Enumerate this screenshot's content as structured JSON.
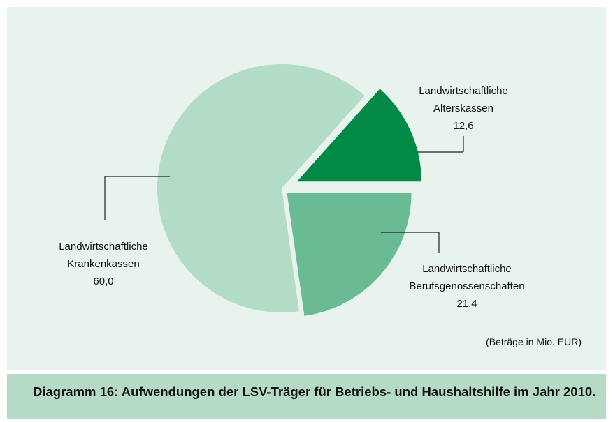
{
  "chart_data": {
    "type": "pie",
    "categories": [
      "Landwirtschaftliche\nAlterskassen",
      "Landwirtschaftliche\nBerufsgenossenschaften",
      "Landwirtschaftliche\nKrankenkassen"
    ],
    "values": [
      12.6,
      21.4,
      60.0
    ],
    "value_labels": [
      "12,6",
      "21,4",
      "60,0"
    ],
    "colors": [
      "#008a45",
      "#68bb93",
      "#b3dcc7"
    ],
    "note": "(Beträge in Mio. EUR)",
    "caption": "Diagramm 16: Aufwendungen der LSV-Träger für Betriebs- und Haushaltshilfe im Jahr 2010."
  }
}
